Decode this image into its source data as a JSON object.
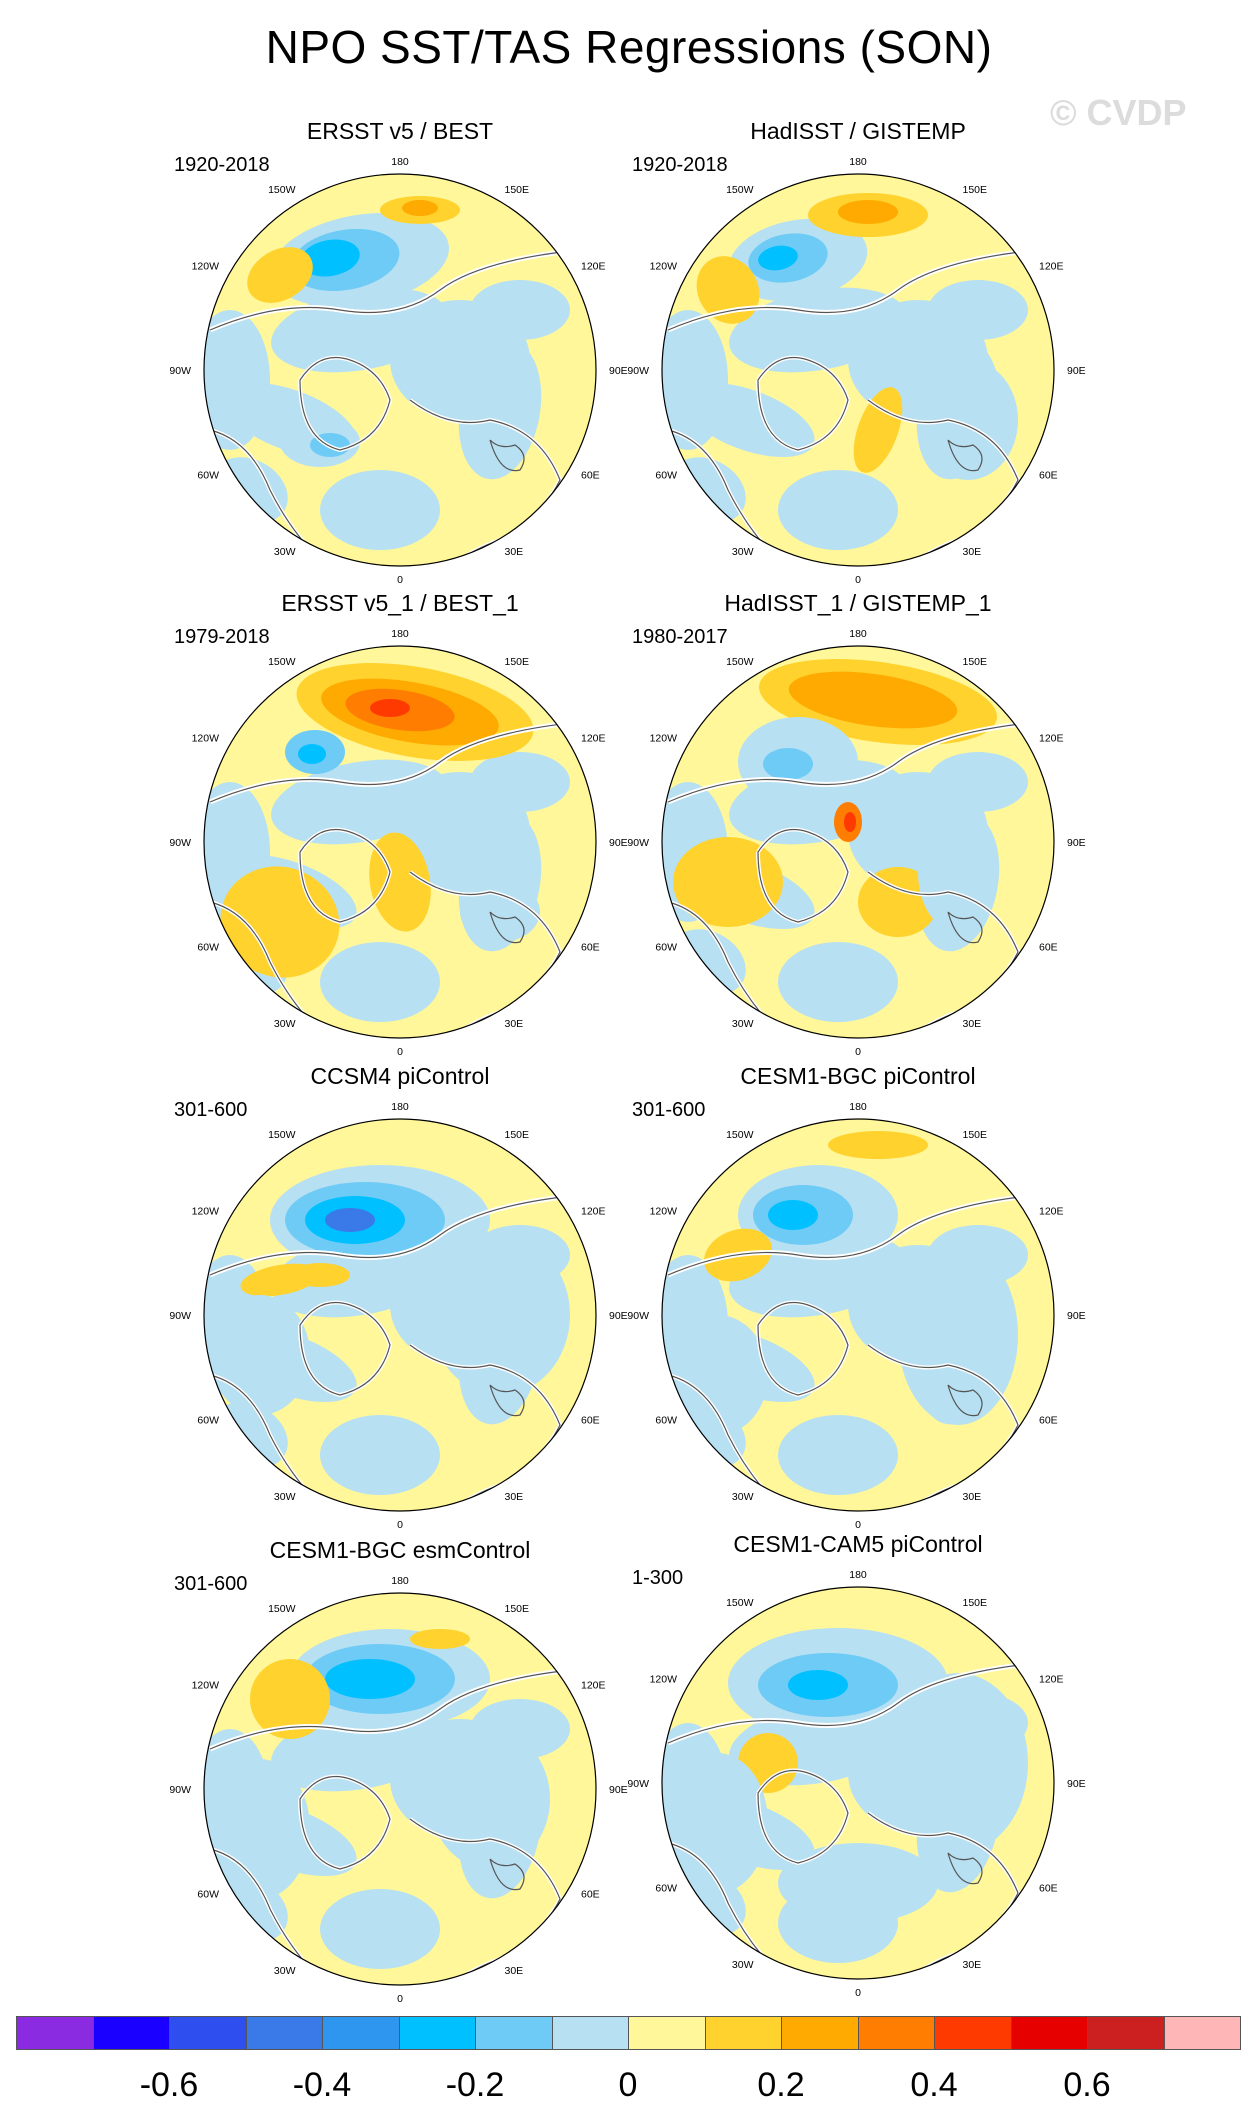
{
  "title": "NPO SST/TAS Regressions (SON)",
  "watermark": "© CVDP",
  "lon_labels": [
    "180",
    "150E",
    "120E",
    "90E",
    "60E",
    "30E",
    "0",
    "30W",
    "60W",
    "90W",
    "120W",
    "150W"
  ],
  "panels": [
    {
      "title": "ERSST v5 / BEST",
      "period": "1920-2018"
    },
    {
      "title": "HadISST / GISTEMP",
      "period": "1920-2018"
    },
    {
      "title": "ERSST v5_1 / BEST_1",
      "period": "1979-2018"
    },
    {
      "title": "HadISST_1 / GISTEMP_1",
      "period": "1980-2017"
    },
    {
      "title": "CCSM4 piControl",
      "period": "301-600"
    },
    {
      "title": "CESM1-BGC piControl",
      "period": "301-600"
    },
    {
      "title": "CESM1-BGC esmControl",
      "period": "301-600"
    },
    {
      "title": "CESM1-CAM5 piControl",
      "period": "1-300"
    }
  ],
  "colorbar": {
    "colors": [
      "#8a2be2",
      "#1a00ff",
      "#2e4ef0",
      "#3a7ae8",
      "#2f96f0",
      "#00c0ff",
      "#6ecbf6",
      "#b7e0f2",
      "#fff799",
      "#ffd22e",
      "#ffaa00",
      "#ff7d00",
      "#ff3a00",
      "#e60000",
      "#cc1f1f",
      "#ffb6b6"
    ],
    "labels": [
      "-0.6",
      "-0.4",
      "-0.2",
      "0",
      "0.2",
      "0.4",
      "0.6"
    ]
  }
}
